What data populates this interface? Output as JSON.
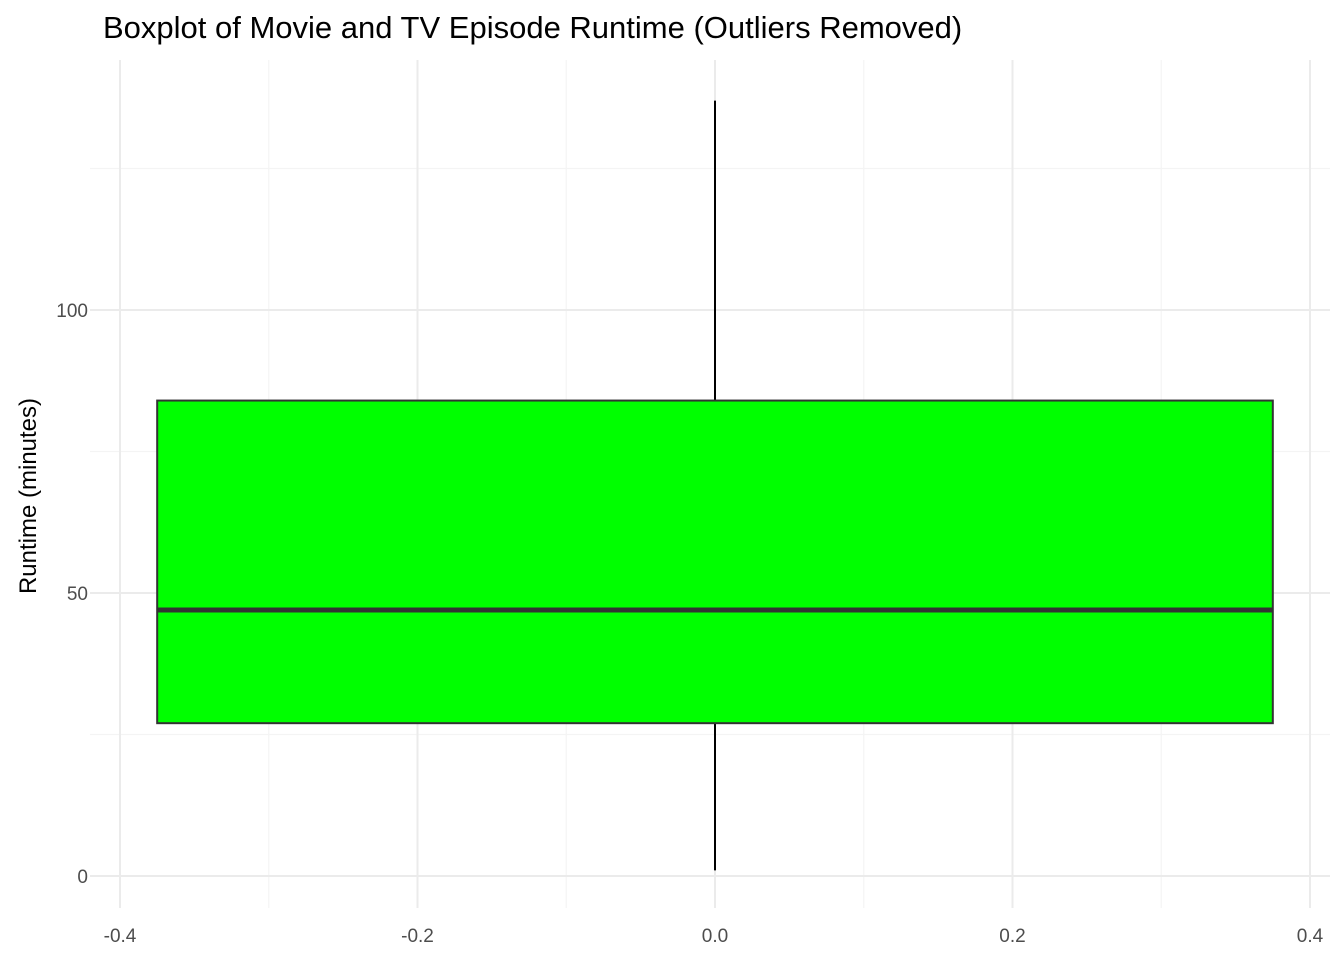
{
  "chart_data": {
    "type": "boxplot",
    "title": "Boxplot of Movie and TV Episode Runtime (Outliers Removed)",
    "xlabel": "",
    "ylabel": "Runtime (minutes)",
    "xlim": [
      -0.4,
      0.4
    ],
    "ylim": [
      0,
      137
    ],
    "x_ticks": [
      -0.4,
      -0.2,
      0.0,
      0.2,
      0.4
    ],
    "x_tick_labels": [
      "-0.4",
      "-0.2",
      "0.0",
      "0.2",
      "0.4"
    ],
    "y_ticks": [
      0,
      50,
      100
    ],
    "y_tick_labels": [
      "0",
      "50",
      "100"
    ],
    "grid": true,
    "legend": "none",
    "box": {
      "x_center": 0.0,
      "x_left": -0.375,
      "x_right": 0.375,
      "whisker_low": 1,
      "q1": 27,
      "median": 47,
      "q3": 84,
      "whisker_high": 137
    },
    "colors": {
      "box_fill": "#00ff00",
      "box_stroke": "#333333",
      "whisker": "#000000",
      "grid_major": "#ebebeb",
      "grid_minor": "#f4f4f4",
      "tick_text": "#4d4d4d"
    }
  }
}
